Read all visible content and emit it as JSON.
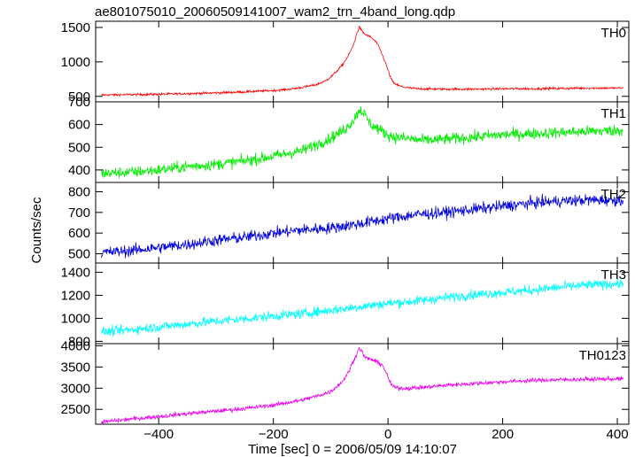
{
  "chart_data": {
    "type": "line",
    "title": "ae801075010_20060509141007_wam2_trn_4band_long.qdp",
    "xlabel": "Time [sec] 0 = 2006/05/09 14:10:07",
    "ylabel": "Counts/sec",
    "xlim": [
      -510,
      420
    ],
    "xticks": [
      -400,
      -200,
      0,
      200,
      400
    ],
    "grid": false,
    "panels": [
      {
        "name": "TH0",
        "color": "#ff0000",
        "ylim": [
          420,
          1590
        ],
        "yticks": [
          500,
          1000,
          1500
        ],
        "x": [
          -500,
          -450,
          -400,
          -350,
          -300,
          -250,
          -200,
          -175,
          -150,
          -125,
          -110,
          -100,
          -90,
          -80,
          -70,
          -60,
          -55,
          -50,
          -45,
          -40,
          -35,
          -30,
          -25,
          -20,
          -15,
          -10,
          -5,
          0,
          5,
          10,
          20,
          30,
          50,
          100,
          150,
          200,
          250,
          300,
          350,
          410
        ],
        "values": [
          520,
          525,
          530,
          540,
          550,
          565,
          585,
          600,
          630,
          670,
          720,
          780,
          860,
          950,
          1080,
          1250,
          1400,
          1510,
          1440,
          1400,
          1380,
          1360,
          1320,
          1280,
          1200,
          1100,
          1000,
          880,
          760,
          690,
          650,
          630,
          610,
          605,
          605,
          610,
          610,
          615,
          620,
          620
        ],
        "noise": 12
      },
      {
        "name": "TH1",
        "color": "#00ee00",
        "ylim": [
          345,
          700
        ],
        "yticks": [
          400,
          500,
          600,
          700
        ],
        "x": [
          -500,
          -450,
          -400,
          -350,
          -300,
          -250,
          -200,
          -150,
          -100,
          -75,
          -60,
          -50,
          -45,
          -40,
          -30,
          -20,
          -10,
          0,
          10,
          30,
          60,
          100,
          150,
          200,
          250,
          300,
          350,
          410
        ],
        "values": [
          385,
          390,
          400,
          415,
          425,
          440,
          460,
          485,
          540,
          580,
          620,
          665,
          660,
          640,
          600,
          585,
          570,
          555,
          545,
          540,
          530,
          535,
          545,
          555,
          560,
          565,
          570,
          575
        ],
        "noise": 18
      },
      {
        "name": "TH2",
        "color": "#0000dd",
        "ylim": [
          455,
          845
        ],
        "yticks": [
          500,
          600,
          700,
          800
        ],
        "x": [
          -500,
          -450,
          -400,
          -350,
          -300,
          -250,
          -200,
          -150,
          -100,
          -50,
          0,
          50,
          100,
          150,
          200,
          250,
          300,
          350,
          410
        ],
        "values": [
          505,
          515,
          530,
          545,
          565,
          580,
          600,
          615,
          625,
          645,
          670,
          690,
          700,
          715,
          730,
          745,
          755,
          760,
          760
        ],
        "noise": 20
      },
      {
        "name": "TH3",
        "color": "#00ffff",
        "ylim": [
          780,
          1480
        ],
        "yticks": [
          800,
          1000,
          1200,
          1400
        ],
        "x": [
          -500,
          -450,
          -400,
          -350,
          -300,
          -250,
          -200,
          -150,
          -100,
          -50,
          0,
          50,
          100,
          150,
          200,
          250,
          300,
          350,
          410
        ],
        "values": [
          880,
          900,
          925,
          950,
          975,
          995,
          1020,
          1040,
          1070,
          1100,
          1130,
          1150,
          1180,
          1205,
          1225,
          1245,
          1270,
          1290,
          1300
        ],
        "noise": 30
      },
      {
        "name": "TH0123",
        "color": "#ee00ee",
        "ylim": [
          2150,
          4050
        ],
        "yticks": [
          2500,
          3000,
          3500,
          4000
        ],
        "x": [
          -500,
          -450,
          -400,
          -350,
          -300,
          -250,
          -200,
          -150,
          -120,
          -100,
          -80,
          -70,
          -60,
          -55,
          -50,
          -45,
          -40,
          -30,
          -20,
          -10,
          -5,
          0,
          5,
          10,
          20,
          40,
          70,
          100,
          150,
          200,
          250,
          300,
          350,
          410
        ],
        "values": [
          2200,
          2270,
          2330,
          2400,
          2460,
          2520,
          2600,
          2720,
          2830,
          2920,
          3150,
          3350,
          3650,
          3800,
          3950,
          3850,
          3720,
          3680,
          3620,
          3550,
          3420,
          3250,
          3100,
          3020,
          3000,
          3000,
          3030,
          3070,
          3110,
          3150,
          3180,
          3200,
          3210,
          3220
        ],
        "noise": 35
      }
    ]
  }
}
